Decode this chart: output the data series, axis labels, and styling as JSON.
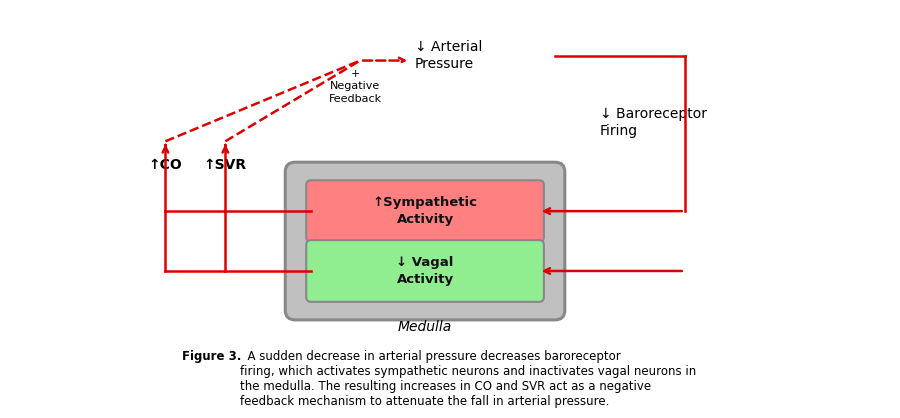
{
  "bg_color": "#ffffff",
  "arrow_color": "#dd0000",
  "text_color": "#000000",
  "symp_box_color": "#ff8080",
  "vagal_box_color": "#90ee90",
  "medulla_box_color": "#c0c0c0",
  "medulla_border_color": "#888888",
  "inner_border_color": "#888888",
  "arterial_pressure_label": "↓ Arterial\nPressure",
  "baroreceptor_label": "↓ Baroreceptor\nFiring",
  "co_label": "↑CO",
  "svr_label": "↑SVR",
  "symp_label": "↑Sympathetic\nActivity",
  "vagal_label": "↓ Vagal\nActivity",
  "medulla_label": "Medulla",
  "neg_feedback_label": "+\nNegative\nFeedback",
  "caption_bold": "Figure 3.",
  "caption_rest": "  A sudden decrease in arterial pressure decreases baroreceptor\nfiring, which activates sympathetic neurons and inactivates vagal neurons in\nthe medulla. The resulting increases in CO and SVR act as a negative\nfeedback mechanism to attenuate the fall in arterial pressure."
}
